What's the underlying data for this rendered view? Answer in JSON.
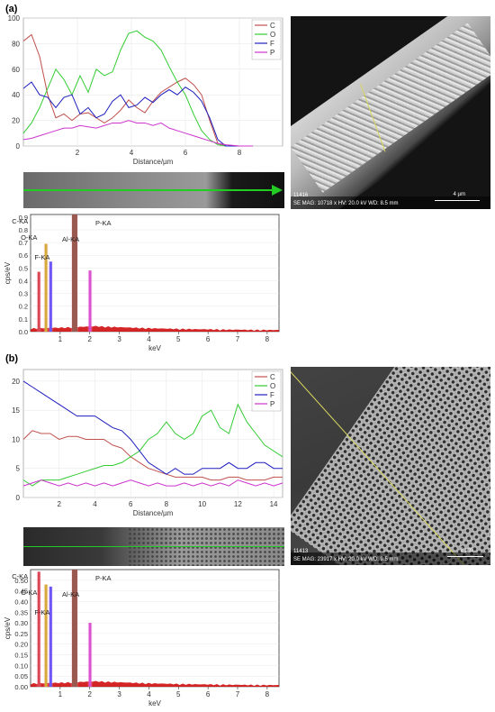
{
  "figure": {
    "panel_a": {
      "label": "(a)",
      "linescan": {
        "xlabel": "Distance/µm",
        "x_ticks": [
          "2",
          "4",
          "6",
          "8"
        ],
        "y_ticks": [
          "0",
          "20",
          "40",
          "60",
          "80",
          "100"
        ],
        "legend": [
          "C",
          "O",
          "F",
          "P"
        ]
      },
      "spectrum": {
        "ylabel": "cps/eV",
        "xlabel": "keV",
        "y_ticks": [
          "0.0",
          "0.1",
          "0.2",
          "0.3",
          "0.4",
          "0.5",
          "0.6",
          "0.7",
          "0.8",
          "0.9"
        ],
        "x_ticks": [
          "1",
          "2",
          "3",
          "4",
          "5",
          "6",
          "7",
          "8"
        ],
        "peak_labels": [
          "C-KA",
          "O-KA",
          "F-KA",
          "Al-KA",
          "P-KA"
        ]
      },
      "sem": {
        "id": "11416",
        "info": "SE  MAG: 10718 x  HV: 20.0 kV  WD: 8.5 mm",
        "scale": "4 µm"
      }
    },
    "panel_b": {
      "label": "(b)",
      "linescan": {
        "xlabel": "Distance/µm",
        "x_ticks": [
          "2",
          "4",
          "6",
          "8",
          "10",
          "12",
          "14"
        ],
        "y_ticks": [
          "0",
          "5",
          "10",
          "15",
          "20"
        ],
        "legend": [
          "C",
          "O",
          "F",
          "P"
        ]
      },
      "spectrum": {
        "ylabel": "cps/eV",
        "xlabel": "keV",
        "y_ticks": [
          "0.00",
          "0.05",
          "0.10",
          "0.15",
          "0.20",
          "0.25",
          "0.30",
          "0.35",
          "0.40",
          "0.45",
          "0.50"
        ],
        "x_ticks": [
          "1",
          "2",
          "3",
          "4",
          "5",
          "6",
          "7",
          "8"
        ],
        "peak_labels": [
          "C-KA",
          "O-KA",
          "F-KA",
          "Al-KA",
          "P-KA"
        ]
      },
      "sem": {
        "id": "11413",
        "info": "SE  MAG: 23917 x  HV: 20.0 kV  WD: 9.5 mm",
        "scale": "2 µm"
      }
    }
  },
  "colors": {
    "C": "#c0504d",
    "O": "#33cc33",
    "F": "#1f1fbf",
    "P": "#cc33cc",
    "spectrum": "#cc0000",
    "spectrum_fill": "#b00000",
    "al_peak": "#7a3b1e",
    "line": "#22cc22"
  },
  "chart_data": [
    {
      "type": "line",
      "panel": "a",
      "xlim": [
        0,
        9.6
      ],
      "ylim": [
        0,
        100
      ],
      "xlabel": "Distance/µm",
      "series": [
        {
          "name": "C",
          "x": [
            0,
            0.3,
            0.6,
            0.9,
            1.2,
            1.5,
            1.8,
            2.1,
            2.4,
            2.7,
            3,
            3.3,
            3.6,
            3.9,
            4.2,
            4.5,
            4.8,
            5.1,
            5.4,
            5.7,
            6,
            6.3,
            6.6,
            6.9,
            7.2,
            7.5,
            8,
            8.5
          ],
          "y": [
            82,
            87,
            70,
            40,
            22,
            25,
            20,
            25,
            26,
            22,
            18,
            22,
            28,
            36,
            30,
            26,
            35,
            42,
            46,
            50,
            53,
            48,
            40,
            20,
            2,
            0,
            0,
            0
          ]
        },
        {
          "name": "O",
          "x": [
            0,
            0.3,
            0.6,
            0.9,
            1.2,
            1.5,
            1.8,
            2.1,
            2.4,
            2.7,
            3,
            3.3,
            3.6,
            3.9,
            4.2,
            4.5,
            4.8,
            5.1,
            5.4,
            5.7,
            6,
            6.3,
            6.6,
            6.9,
            7.2,
            7.5,
            8,
            8.5
          ],
          "y": [
            10,
            18,
            30,
            45,
            60,
            52,
            40,
            55,
            42,
            60,
            55,
            58,
            75,
            88,
            90,
            85,
            82,
            75,
            62,
            50,
            40,
            25,
            12,
            5,
            1,
            0,
            0,
            0
          ]
        },
        {
          "name": "F",
          "x": [
            0,
            0.3,
            0.6,
            0.9,
            1.2,
            1.5,
            1.8,
            2.1,
            2.4,
            2.7,
            3,
            3.3,
            3.6,
            3.9,
            4.2,
            4.5,
            4.8,
            5.1,
            5.4,
            5.7,
            6,
            6.3,
            6.6,
            6.9,
            7.2,
            7.5,
            8,
            8.5
          ],
          "y": [
            45,
            50,
            40,
            38,
            30,
            38,
            40,
            25,
            30,
            22,
            25,
            35,
            40,
            30,
            32,
            38,
            34,
            40,
            44,
            40,
            46,
            42,
            35,
            22,
            5,
            0,
            0,
            0
          ]
        },
        {
          "name": "P",
          "x": [
            0,
            0.3,
            0.6,
            0.9,
            1.2,
            1.5,
            1.8,
            2.1,
            2.4,
            2.7,
            3,
            3.3,
            3.6,
            3.9,
            4.2,
            4.5,
            4.8,
            5.1,
            5.4,
            5.7,
            6,
            6.3,
            6.6,
            6.9,
            7.2,
            7.5,
            8,
            8.5
          ],
          "y": [
            5,
            6,
            8,
            10,
            12,
            14,
            14,
            16,
            15,
            14,
            16,
            18,
            18,
            20,
            18,
            18,
            16,
            18,
            14,
            12,
            10,
            8,
            6,
            4,
            2,
            1,
            0,
            0
          ]
        }
      ]
    },
    {
      "type": "bar",
      "panel": "a",
      "xlabel": "keV",
      "ylabel": "cps/eV",
      "xlim": [
        0,
        8.4
      ],
      "ylim": [
        0,
        0.92
      ],
      "peaks": [
        {
          "label": "C-KA",
          "x": 0.28,
          "y": 0.47
        },
        {
          "label": "O-KA",
          "x": 0.52,
          "y": 0.69
        },
        {
          "label": "F-KA",
          "x": 0.68,
          "y": 0.55
        },
        {
          "label": "Al-KA",
          "x": 1.49,
          "y": 0.92
        },
        {
          "label": "P-KA",
          "x": 2.01,
          "y": 0.48
        }
      ]
    },
    {
      "type": "line",
      "panel": "b",
      "xlim": [
        0,
        14.5
      ],
      "ylim": [
        0,
        22
      ],
      "xlabel": "Distance/µm",
      "series": [
        {
          "name": "C",
          "x": [
            0,
            0.5,
            1,
            1.5,
            2,
            2.5,
            3,
            3.5,
            4,
            4.5,
            5,
            5.5,
            6,
            6.5,
            7,
            7.5,
            8,
            8.5,
            9,
            9.5,
            10,
            10.5,
            11,
            11.5,
            12,
            12.5,
            13,
            13.5,
            14,
            14.5
          ],
          "y": [
            10,
            11.5,
            11,
            11,
            10,
            10.5,
            10.5,
            10,
            10,
            10,
            9,
            8.5,
            7,
            6,
            5,
            4.5,
            4,
            3.5,
            3.5,
            3.5,
            3.5,
            3,
            3,
            3.5,
            3.5,
            3,
            3,
            3,
            3.5,
            3.5
          ]
        },
        {
          "name": "O",
          "x": [
            0,
            0.5,
            1,
            1.5,
            2,
            2.5,
            3,
            3.5,
            4,
            4.5,
            5,
            5.5,
            6,
            6.5,
            7,
            7.5,
            8,
            8.5,
            9,
            9.5,
            10,
            10.5,
            11,
            11.5,
            12,
            12.5,
            13,
            13.5,
            14,
            14.5
          ],
          "y": [
            3,
            2,
            3,
            3,
            3,
            3.5,
            4,
            4.5,
            5,
            5.5,
            5.5,
            6,
            7,
            8,
            10,
            11,
            13,
            11,
            10,
            11,
            14,
            15,
            12,
            11,
            16,
            13,
            11,
            9,
            8,
            7
          ]
        },
        {
          "name": "F",
          "x": [
            0,
            0.5,
            1,
            1.5,
            2,
            2.5,
            3,
            3.5,
            4,
            4.5,
            5,
            5.5,
            6,
            6.5,
            7,
            7.5,
            8,
            8.5,
            9,
            9.5,
            10,
            10.5,
            11,
            11.5,
            12,
            12.5,
            13,
            13.5,
            14,
            14.5
          ],
          "y": [
            20,
            19,
            18,
            17,
            16,
            15,
            14,
            14,
            14,
            13,
            12,
            11.5,
            10,
            8,
            6,
            5,
            4,
            5,
            4,
            4,
            5,
            5,
            5,
            6,
            5,
            5,
            6,
            6,
            5,
            5
          ]
        },
        {
          "name": "P",
          "x": [
            0,
            0.5,
            1,
            1.5,
            2,
            2.5,
            3,
            3.5,
            4,
            4.5,
            5,
            5.5,
            6,
            6.5,
            7,
            7.5,
            8,
            8.5,
            9,
            9.5,
            10,
            10.5,
            11,
            11.5,
            12,
            12.5,
            13,
            13.5,
            14,
            14.5
          ],
          "y": [
            2,
            2.5,
            3,
            2.5,
            2,
            2.5,
            2,
            2.5,
            2,
            2.5,
            2,
            2.5,
            3,
            2.5,
            2,
            2.5,
            2,
            2,
            2.5,
            2,
            2.5,
            2,
            2.5,
            2,
            3,
            2.5,
            2,
            2.5,
            2,
            2.5
          ]
        }
      ]
    },
    {
      "type": "bar",
      "panel": "b",
      "xlabel": "keV",
      "ylabel": "cps/eV",
      "xlim": [
        0,
        8.4
      ],
      "ylim": [
        0,
        0.55
      ],
      "peaks": [
        {
          "label": "C-KA",
          "x": 0.28,
          "y": 0.54
        },
        {
          "label": "O-KA",
          "x": 0.52,
          "y": 0.48
        },
        {
          "label": "F-KA",
          "x": 0.68,
          "y": 0.47
        },
        {
          "label": "Al-KA",
          "x": 1.49,
          "y": 0.55
        },
        {
          "label": "P-KA",
          "x": 2.01,
          "y": 0.3
        }
      ]
    }
  ]
}
